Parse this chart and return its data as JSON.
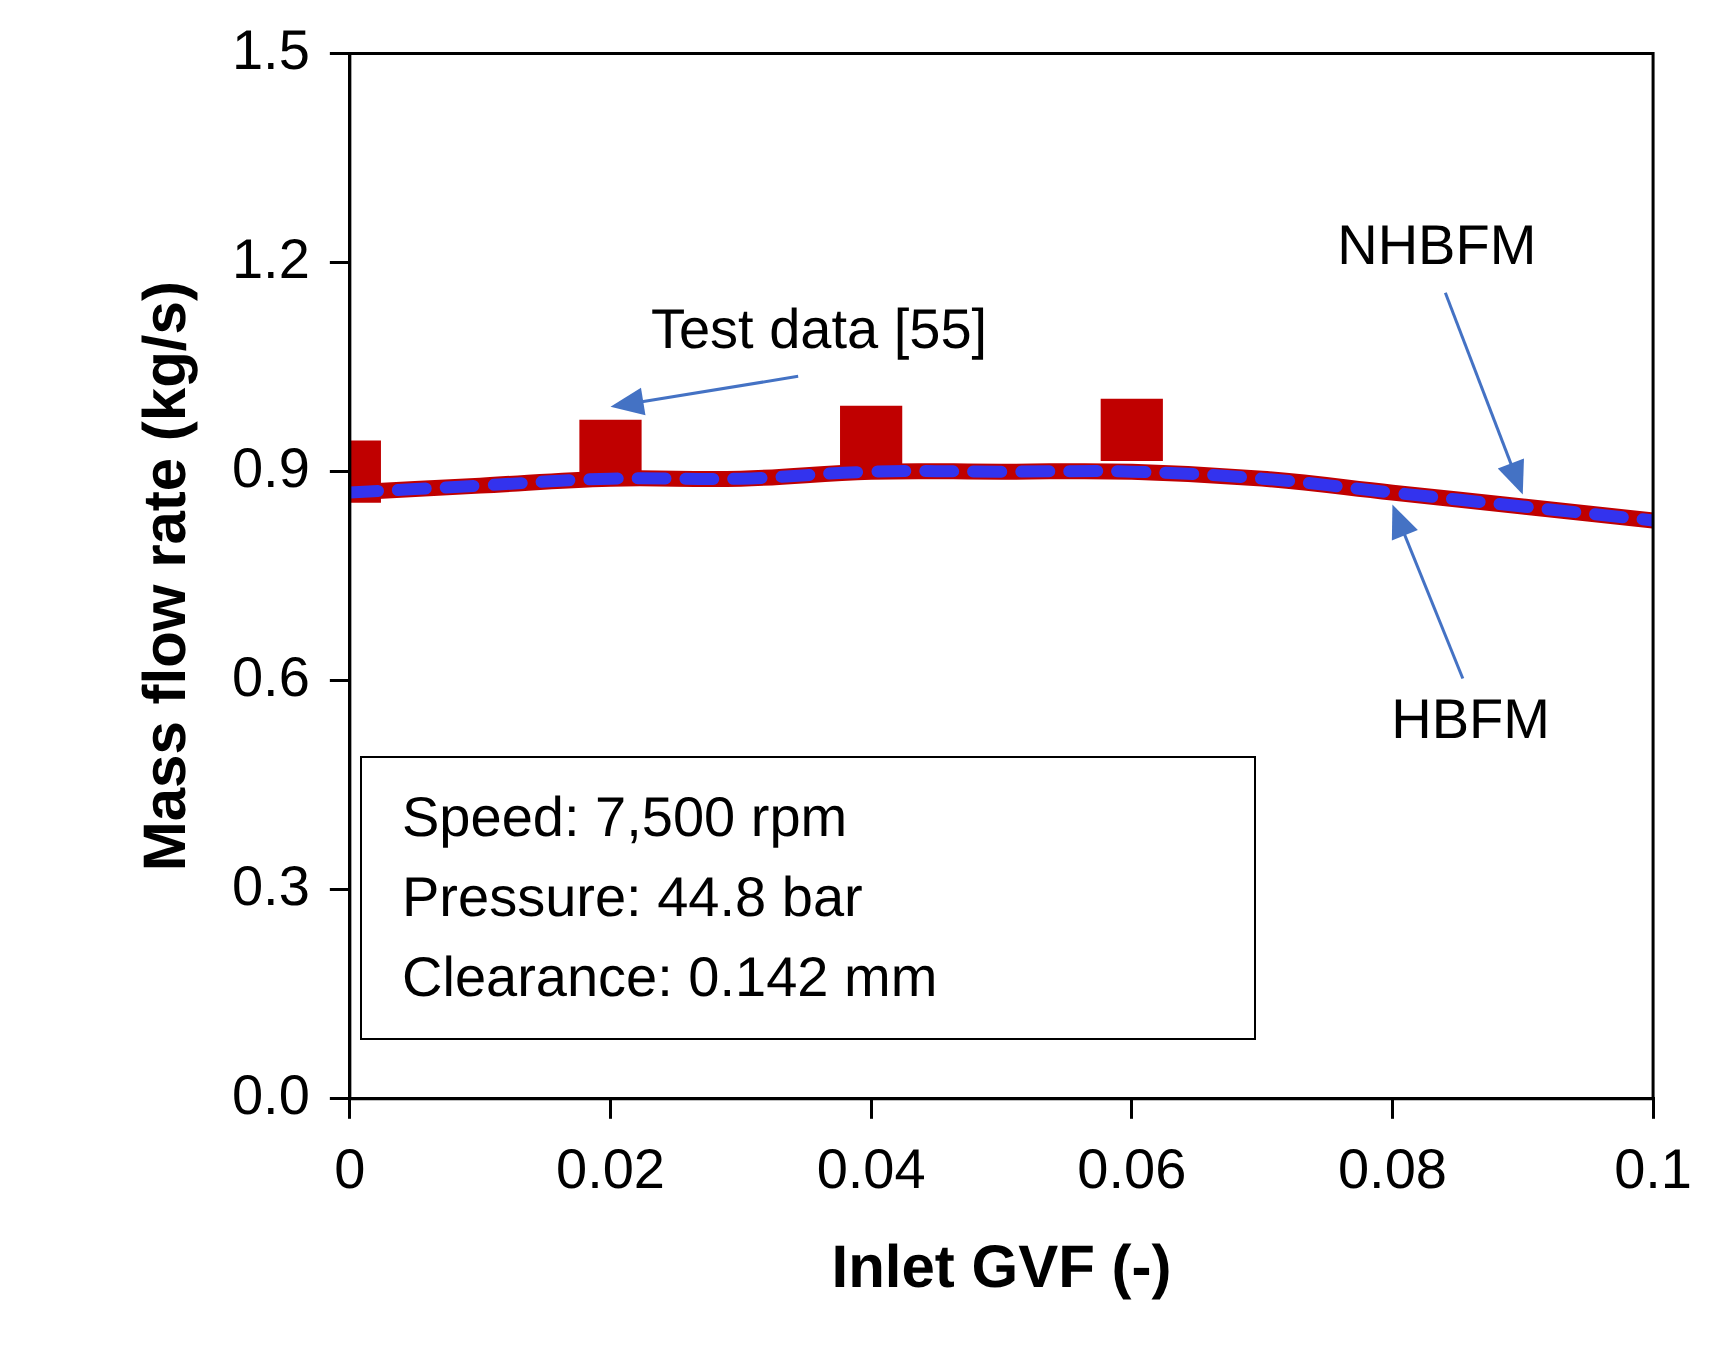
{
  "chart_data": {
    "type": "line",
    "xlabel": "Inlet GVF (-)",
    "ylabel": "Mass flow rate (kg/s)",
    "xlim": [
      0,
      0.1
    ],
    "xticks": [
      0,
      0.02,
      0.04,
      0.06,
      0.08,
      0.1
    ],
    "ylim": [
      0,
      1.5
    ],
    "yticks": [
      {
        "value": 0,
        "label": "0.0"
      },
      0.3,
      0.6,
      0.9,
      1.2,
      1.5
    ],
    "series": [
      {
        "name": "Test data [55]",
        "type": "scatter",
        "marker": "square",
        "color": "#c00000",
        "x": [
          0,
          0.02,
          0.04,
          0.06
        ],
        "values": [
          0.9,
          0.93,
          0.95,
          0.96
        ]
      },
      {
        "name": "NHBFM",
        "type": "line",
        "line_style": "solid",
        "color": "#c00000",
        "x": [
          0,
          0.01,
          0.02,
          0.03,
          0.04,
          0.05,
          0.06,
          0.07,
          0.08,
          0.09,
          0.1
        ],
        "values": [
          0.87,
          0.88,
          0.89,
          0.89,
          0.9,
          0.9,
          0.9,
          0.89,
          0.87,
          0.85,
          0.83
        ]
      },
      {
        "name": "HBFM",
        "type": "line",
        "line_style": "dashed",
        "color": "#3333ee",
        "x": [
          0,
          0.01,
          0.02,
          0.03,
          0.04,
          0.05,
          0.06,
          0.07,
          0.08,
          0.09,
          0.1
        ],
        "values": [
          0.87,
          0.88,
          0.89,
          0.89,
          0.9,
          0.9,
          0.9,
          0.89,
          0.87,
          0.85,
          0.83
        ]
      }
    ],
    "annotations": [
      "Speed: 7,500 rpm",
      "Pressure: 44.8 bar",
      "Clearance: 0.142 mm"
    ]
  }
}
